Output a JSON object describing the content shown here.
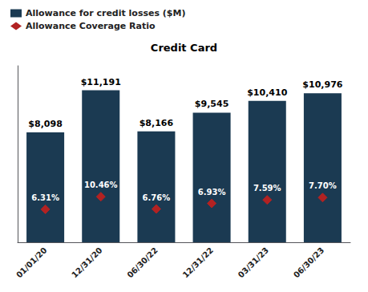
{
  "chart_data": {
    "type": "bar",
    "title": "Credit Card",
    "categories": [
      "01/01/20",
      "12/31/20",
      "06/30/22",
      "12/31/22",
      "03/31/23",
      "06/30/23"
    ],
    "series": [
      {
        "name": "Allowance for credit losses ($M)",
        "type": "bar",
        "color": "#1b3a52",
        "values": [
          8098,
          11191,
          8166,
          9545,
          10410,
          10976
        ],
        "value_labels": [
          "$8,098",
          "$11,191",
          "$8,166",
          "$9,545",
          "$10,410",
          "$10,976"
        ]
      },
      {
        "name": "Allowance Coverage Ratio",
        "type": "scatter",
        "marker": "diamond",
        "color": "#b22222",
        "values": [
          6.31,
          10.46,
          6.76,
          6.93,
          7.59,
          7.7
        ],
        "value_labels": [
          "6.31%",
          "10.46%",
          "6.76%",
          "6.93%",
          "7.59%",
          "7.70%"
        ]
      }
    ],
    "ylim": [
      0,
      13000
    ],
    "data_labels": true,
    "tick_labels": "x",
    "grid": false,
    "legend": "upper left"
  }
}
